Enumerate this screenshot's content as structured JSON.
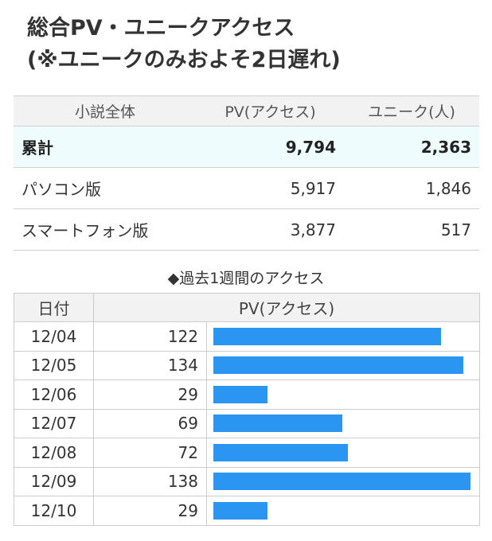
{
  "title": {
    "line1": "総合PV・ユニークアクセス",
    "line2": "(※ユニークのみおよそ2日遅れ)"
  },
  "summary": {
    "headers": [
      "小説全体",
      "PV(アクセス)",
      "ユニーク(人)"
    ],
    "rows": [
      {
        "label": "累計",
        "pv": "9,794",
        "unique": "2,363"
      },
      {
        "label": "パソコン版",
        "pv": "5,917",
        "unique": "1,846"
      },
      {
        "label": "スマートフォン版",
        "pv": "3,877",
        "unique": "517"
      }
    ]
  },
  "chart_data": {
    "type": "bar",
    "title": "◆過去1週間のアクセス",
    "xlabel": "日付",
    "ylabel": "PV(アクセス)",
    "categories": [
      "12/04",
      "12/05",
      "12/06",
      "12/07",
      "12/08",
      "12/09",
      "12/10"
    ],
    "values": [
      122,
      134,
      29,
      69,
      72,
      138,
      29
    ],
    "ylim": [
      0,
      138
    ],
    "bar_color": "#2b96f1",
    "orientation": "horizontal"
  }
}
